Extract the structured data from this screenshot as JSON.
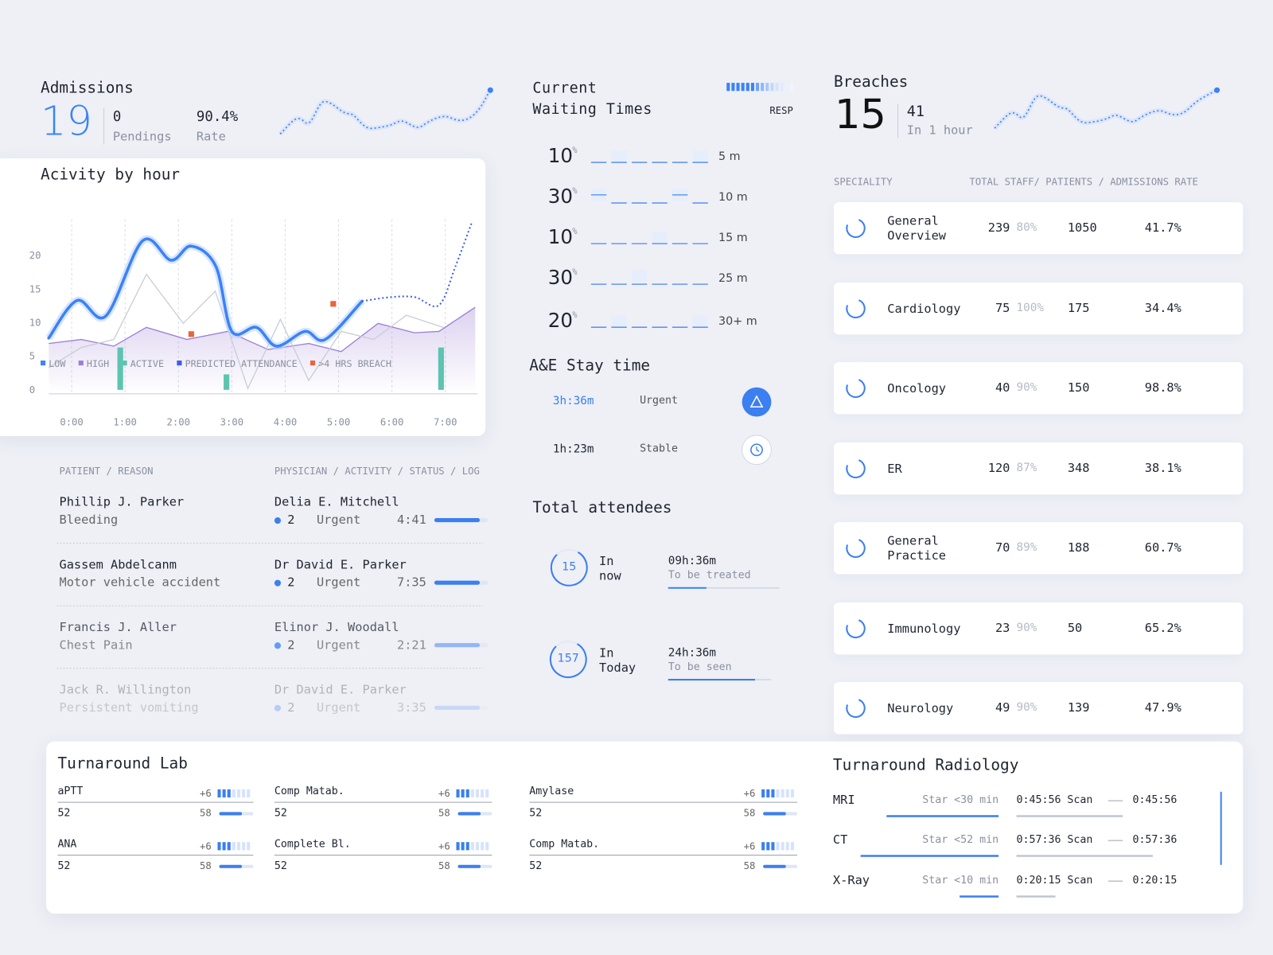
{
  "admissions": {
    "title": "Admissions",
    "value": "19",
    "pendings": {
      "value": "0",
      "label": "Pendings"
    },
    "rate": {
      "value": "90.4%",
      "label": "Rate"
    }
  },
  "waiting": {
    "title": "Current Waiting Times",
    "tag": "RESP",
    "rows": [
      {
        "value": "10",
        "unit": "%",
        "label": "5 m"
      },
      {
        "value": "30",
        "unit": "%",
        "label": "10 m"
      },
      {
        "value": "10",
        "unit": "%",
        "label": "15 m"
      },
      {
        "value": "30",
        "unit": "%",
        "label": "25 m"
      },
      {
        "value": "20",
        "unit": "%",
        "label": "30+ m"
      }
    ]
  },
  "stay": {
    "title": "A&E Stay time",
    "rows": [
      {
        "time": "3h:36m",
        "status": "Urgent"
      },
      {
        "time": "1h:23m",
        "status": "Stable"
      }
    ]
  },
  "attendees": {
    "title": "Total attendees",
    "rows": [
      {
        "count": "15",
        "label": [
          "In",
          "now"
        ],
        "time": "09h:36m",
        "sub": "To be treated"
      },
      {
        "count": "157",
        "label": [
          "In",
          "Today"
        ],
        "time": "24h:36m",
        "sub": "To be seen"
      }
    ]
  },
  "breaches": {
    "title": "Breaches",
    "value": "15",
    "count": "41",
    "label": "In 1 hour"
  },
  "chart_data": {
    "type": "line",
    "title": "Acivity by hour",
    "xlim": [
      -0.43,
      7.6
    ],
    "xticks": [
      {
        "value": 0,
        "label": "0:00"
      },
      {
        "value": 1,
        "label": "1:00"
      },
      {
        "value": 2,
        "label": "2:00"
      },
      {
        "value": 3,
        "label": "3:00"
      },
      {
        "value": 4,
        "label": "4:00"
      },
      {
        "value": 5,
        "label": "5:00"
      },
      {
        "value": 6,
        "label": "6:00"
      },
      {
        "value": 7,
        "label": "7:00"
      }
    ],
    "ylim": [
      -0.6,
      25.4
    ],
    "yticks": [
      0,
      5,
      10,
      15,
      20
    ],
    "grid": true,
    "series": [
      {
        "name": "LOW",
        "color": "#3b82f6",
        "kind": "smooth",
        "x": [
          -0.43,
          0.1,
          0.64,
          1.33,
          1.86,
          2.24,
          2.7,
          3.0,
          3.46,
          3.84,
          4.37,
          4.75,
          5.44
        ],
        "values": [
          7.7,
          13.3,
          11,
          22.2,
          19.3,
          21.4,
          18.4,
          8.7,
          9.3,
          6.5,
          8.7,
          7.5,
          13.2
        ]
      },
      {
        "name": "HIGH",
        "color": "#9b7fd4",
        "kind": "area",
        "x": [
          -0.43,
          0.18,
          0.79,
          1.4,
          2.16,
          2.92,
          3.68,
          4.44,
          5.05,
          5.74,
          6.42,
          6.88,
          7.56
        ],
        "values": [
          6.9,
          7.5,
          6.5,
          9.3,
          7.5,
          8.7,
          6.0,
          6.9,
          5.7,
          9.9,
          8.5,
          8.7,
          12.3
        ]
      },
      {
        "name": "ACTIVE",
        "color": "#5cc4b0",
        "kind": "bar",
        "x": [
          0.91,
          2.9,
          6.92
        ],
        "values": [
          6.3,
          2.3,
          6.3
        ]
      },
      {
        "name": "PREDICTED ATTENDANCE",
        "color": "#3d5ee8",
        "kind": "dotted",
        "x": [
          5.44,
          5.97,
          6.43,
          6.88,
          7.19,
          7.5
        ],
        "values": [
          13.2,
          13.8,
          13.8,
          12.6,
          18.4,
          25
        ]
      },
      {
        "name": ">4 HRS BREACH",
        "color": "#e8643c",
        "kind": "point",
        "x": [
          2.24,
          4.9
        ],
        "values": [
          8.3,
          12.8
        ]
      },
      {
        "color": "#c9cdd6",
        "kind": "thin",
        "x": [
          -0.43,
          0.18,
          0.79,
          1.4,
          2.09,
          2.69,
          3.3,
          3.91,
          4.44,
          5.05,
          5.66,
          6.27,
          6.96
        ],
        "values": [
          3.3,
          6.3,
          7.5,
          17.2,
          9.9,
          14.7,
          0.2,
          10.5,
          1.4,
          8.7,
          7.5,
          11.1,
          9.3
        ]
      }
    ]
  },
  "patients": {
    "headers": [
      "PATIENT / REASON",
      "PHYSICIAN / ACTIVITY / STATUS / LOG"
    ],
    "rows": [
      {
        "name": "Phillip J. Parker",
        "reason": "Bleeding",
        "physician": "Delia E. Mitchell",
        "count": "2",
        "status": "Urgent",
        "time": "4:41"
      },
      {
        "name": "Gassem Abdelcanm",
        "reason": "Motor vehicle accident",
        "physician": "Dr David E. Parker",
        "count": "2",
        "status": "Urgent",
        "time": "7:35"
      },
      {
        "name": "Francis J. Aller",
        "reason": "Chest Pain",
        "physician": "Elinor J. Woodall",
        "count": "2",
        "status": "Urgent",
        "time": "2:21"
      },
      {
        "name": "Jack R. Willington",
        "reason": "Persistent vomiting",
        "physician": "Dr David E. Parker",
        "count": "2",
        "status": "Urgent",
        "time": "3:35"
      }
    ]
  },
  "specialities": {
    "headers": [
      "SPECIALITY",
      "TOTAL STAFF/ PATIENTS / ADMISSIONS RATE"
    ],
    "rows": [
      {
        "name": "General Overview",
        "staff": "239",
        "pct": "80%",
        "patients": "1050",
        "rate": "41.7%"
      },
      {
        "name": "Cardiology",
        "staff": "75",
        "pct": "100%",
        "patients": "175",
        "rate": "34.4%"
      },
      {
        "name": "Oncology",
        "staff": "40",
        "pct": "90%",
        "patients": "150",
        "rate": "98.8%"
      },
      {
        "name": "ER",
        "staff": "120",
        "pct": "87%",
        "patients": "348",
        "rate": "38.1%"
      },
      {
        "name": "General Practice",
        "staff": "70",
        "pct": "89%",
        "patients": "188",
        "rate": "60.7%"
      },
      {
        "name": "Immunology",
        "staff": "23",
        "pct": "90%",
        "patients": "50",
        "rate": "65.2%"
      },
      {
        "name": "Neurology",
        "staff": "49",
        "pct": "90%",
        "patients": "139",
        "rate": "47.9%"
      }
    ]
  },
  "lab": {
    "title": "Turnaround Lab",
    "items": [
      {
        "name": "aPTT",
        "delta": "+6",
        "low": "52",
        "high": "58"
      },
      {
        "name": "ANA",
        "delta": "+6",
        "low": "52",
        "high": "58"
      },
      {
        "name": "Comp Matab.",
        "delta": "+6",
        "low": "52",
        "high": "58"
      },
      {
        "name": "Complete Bl.",
        "delta": "+6",
        "low": "52",
        "high": "58"
      },
      {
        "name": "Amylase",
        "delta": "+6",
        "low": "52",
        "high": "58"
      },
      {
        "name": "Comp Matab.",
        "delta": "+6",
        "low": "52",
        "high": "58"
      }
    ]
  },
  "radiology": {
    "title": "Turnaround Radiology",
    "rows": [
      {
        "name": "MRI",
        "target": "Star <30 min",
        "scan": "0:45:56 Scan",
        "time": "0:45:56"
      },
      {
        "name": "CT",
        "target": "Star <52 min",
        "scan": "0:57:36 Scan",
        "time": "0:57:36"
      },
      {
        "name": "X-Ray",
        "target": "Star <10 min",
        "scan": "0:20:15 Scan",
        "time": "0:20:15"
      }
    ]
  }
}
